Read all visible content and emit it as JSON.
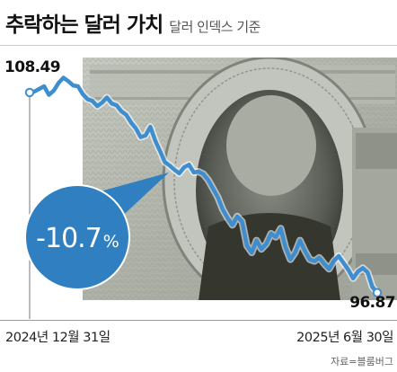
{
  "header": {
    "title": "추락하는 달러 가치",
    "subtitle": "달러 인덱스 기준"
  },
  "chart_data": {
    "type": "line",
    "series": [
      {
        "values": [
          108.49,
          108.55,
          108.7,
          108.85,
          108.35,
          108.6,
          109.05,
          109.35,
          109.15,
          108.9,
          108.85,
          108.4,
          108.1,
          108.0,
          107.7,
          107.9,
          108.2,
          107.85,
          107.75,
          107.4,
          107.2,
          106.75,
          106.4,
          105.9,
          106.0,
          106.5,
          105.7,
          105.1,
          104.45,
          104.25,
          104.0,
          103.8,
          104.15,
          104.3,
          103.85,
          103.9,
          103.75,
          103.4,
          102.9,
          102.4,
          101.7,
          101.2,
          100.8,
          101.3,
          101.0,
          99.6,
          99.2,
          99.9,
          99.4,
          99.7,
          100.3,
          100.1,
          100.6,
          99.5,
          98.8,
          99.2,
          99.9,
          99.3,
          98.8,
          98.7,
          98.9,
          98.55,
          98.25,
          98.7,
          99.0,
          98.6,
          98.2,
          97.7,
          98.1,
          98.3,
          98.05,
          97.2,
          96.87
        ]
      }
    ],
    "start": {
      "label": "2024년 12월 31일",
      "value": "108.49"
    },
    "end": {
      "label": "2025년 6월 30일",
      "value": "96.87"
    },
    "change_label": "-10.7",
    "change_unit": "%",
    "ylim": [
      95.5,
      110.0
    ],
    "grid": false,
    "legend": false,
    "colors": {
      "line": "#3e8ecf",
      "marker": "#3e8ecf",
      "bubble": "#2f7fc1",
      "banknote": "#8f9489"
    }
  },
  "source": "자료=블룸버그"
}
